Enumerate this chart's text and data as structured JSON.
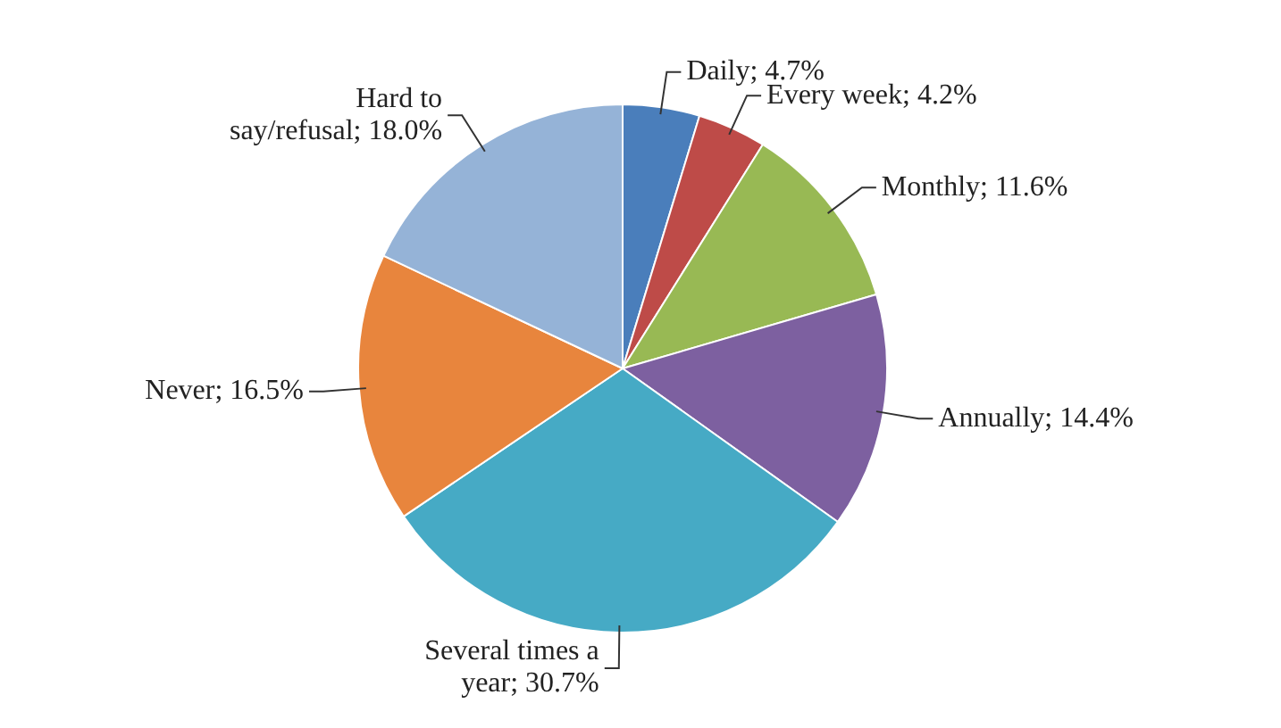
{
  "chart_data": {
    "type": "pie",
    "categories": [
      "Daily",
      "Every week",
      "Monthly",
      "Annually",
      "Several times a year",
      "Never",
      "Hard to say/refusal"
    ],
    "values": [
      4.7,
      4.2,
      11.6,
      14.4,
      30.7,
      16.5,
      18.0
    ],
    "value_labels": [
      "4.7%",
      "4.2%",
      "11.6%",
      "14.4%",
      "30.7%",
      "16.5%",
      "18.0%"
    ],
    "colors": [
      "#4a7ebb",
      "#be4b48",
      "#98b954",
      "#7d60a0",
      "#46aac5",
      "#e8853d",
      "#95b3d7"
    ],
    "legend": false
  }
}
